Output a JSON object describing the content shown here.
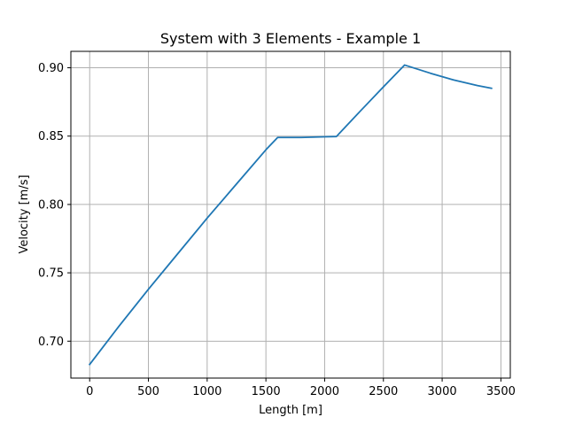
{
  "chart_data": {
    "type": "line",
    "title": "System with 3 Elements - Example 1",
    "xlabel": "Length [m]",
    "ylabel": "Velocity [m/s]",
    "xlim": [
      -160,
      3580
    ],
    "ylim": [
      0.673,
      0.912
    ],
    "xticks": [
      0,
      500,
      1000,
      1500,
      2000,
      2500,
      3000,
      3500
    ],
    "xtick_labels": [
      "0",
      "500",
      "1000",
      "1500",
      "2000",
      "2500",
      "3000",
      "3500"
    ],
    "yticks": [
      0.7,
      0.75,
      0.8,
      0.85,
      0.9
    ],
    "ytick_labels": [
      "0.70",
      "0.75",
      "0.80",
      "0.85",
      "0.90"
    ],
    "grid": true,
    "series": [
      {
        "color": "#1f77b4",
        "x": [
          0,
          250,
          500,
          750,
          1000,
          1250,
          1500,
          1600,
          1800,
          2000,
          2100,
          2300,
          2500,
          2680,
          2900,
          3100,
          3300,
          3420
        ],
        "y": [
          0.683,
          0.711,
          0.738,
          0.764,
          0.79,
          0.815,
          0.84,
          0.849,
          0.849,
          0.8495,
          0.8497,
          0.868,
          0.886,
          0.902,
          0.896,
          0.891,
          0.887,
          0.885
        ]
      }
    ]
  }
}
